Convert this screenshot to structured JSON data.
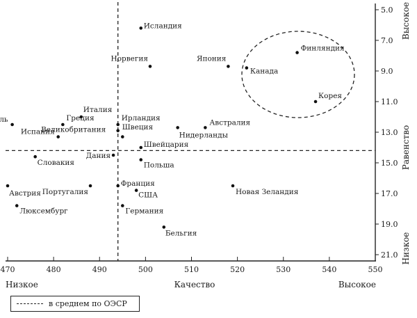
{
  "chart_data": {
    "type": "scatter",
    "xlim": [
      470,
      550
    ],
    "ylim": [
      5,
      21
    ],
    "y_inverted": true,
    "x_ticks": [
      470,
      480,
      490,
      500,
      510,
      520,
      530,
      540,
      550
    ],
    "y_ticks": [
      "5.0",
      "7.0",
      "9.0",
      "11.0",
      "13.0",
      "15.0",
      "17.0",
      "19.0",
      "21.0"
    ],
    "x_label_left": "Низкое",
    "x_label_center": "Качество",
    "x_label_right": "Высокое",
    "y_label_top": "Высокое",
    "y_label_center": "Равенство",
    "y_label_bottom": "Низкое",
    "oecd_average": {
      "x": 494,
      "y": 14.2
    },
    "legend_label": "в среднем по ОЭСР",
    "points": [
      {
        "name": "Исландия",
        "x": 499,
        "y": 6.2
      },
      {
        "name": "Норвегия",
        "x": 501,
        "y": 8.7
      },
      {
        "name": "Япония",
        "x": 518,
        "y": 8.7
      },
      {
        "name": "Финляндия",
        "x": 533,
        "y": 7.8
      },
      {
        "name": "Канада",
        "x": 522,
        "y": 8.8
      },
      {
        "name": "Корея",
        "x": 537,
        "y": 11.0
      },
      {
        "name": "Италия",
        "x": 486,
        "y": 12.0
      },
      {
        "name": "Израиль",
        "x": 471,
        "y": 12.5
      },
      {
        "name": "Греция",
        "x": 482,
        "y": 12.5
      },
      {
        "name": "Ирландия",
        "x": 494,
        "y": 12.5
      },
      {
        "name": "Австралия",
        "x": 513,
        "y": 12.7
      },
      {
        "name": "Швеция",
        "x": 494,
        "y": 12.9
      },
      {
        "name": "Нидерланды",
        "x": 507,
        "y": 12.7
      },
      {
        "name": "Испания",
        "x": 481,
        "y": 13.3
      },
      {
        "name": "Великобритания",
        "x": 495,
        "y": 13.3
      },
      {
        "name": "Швейцария",
        "x": 499,
        "y": 14.0
      },
      {
        "name": "Словакия",
        "x": 476,
        "y": 14.6
      },
      {
        "name": "Дания",
        "x": 493,
        "y": 14.5
      },
      {
        "name": "Польша",
        "x": 499,
        "y": 14.8
      },
      {
        "name": "Австрия",
        "x": 470,
        "y": 16.5
      },
      {
        "name": "Португалия",
        "x": 488,
        "y": 16.5
      },
      {
        "name": "Франция",
        "x": 494,
        "y": 16.5
      },
      {
        "name": "США",
        "x": 498,
        "y": 16.8
      },
      {
        "name": "Новая Зеландия",
        "x": 519,
        "y": 16.5
      },
      {
        "name": "Люксембург",
        "x": 472,
        "y": 17.8
      },
      {
        "name": "Германия",
        "x": 495,
        "y": 17.8
      },
      {
        "name": "Бельгия",
        "x": 504,
        "y": 19.2
      }
    ]
  }
}
